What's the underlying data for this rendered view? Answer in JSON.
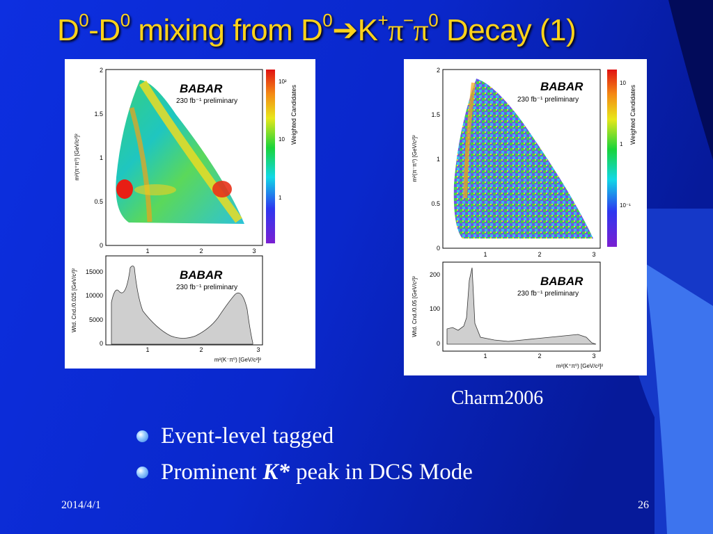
{
  "slide": {
    "title": {
      "p1": "D",
      "s1": "0",
      "p2": "-D",
      "s2": "0",
      "p3": " mixing from D",
      "s3": "0",
      "arrow": "➔",
      "p4": "K",
      "s4": "+",
      "p5": "π",
      "s5": "−",
      "p6": "π",
      "s6": "0",
      "p7": " Decay (1)"
    },
    "caption": "Charm2006",
    "bullets": [
      {
        "text": "Event-level tagged"
      },
      {
        "before": "Prominent",
        "emph": "K*",
        "after": "peak in DCS Mode"
      }
    ],
    "footer": {
      "date": "2014/4/1",
      "page": "26"
    },
    "colors": {
      "background": "#0a2ad0",
      "title": "#ffd21a",
      "decoration": "#3d74ee"
    }
  },
  "plots": {
    "babar": "BABAR",
    "lumi": "230 fb⁻¹ preliminary",
    "left_dalitz": {
      "ylabel": "m²(π⁺π⁰) [GeV/c²]²",
      "colorbar_label": "Weighted Candidates",
      "xticks": [
        "1",
        "2",
        "3"
      ],
      "yticks": [
        "0",
        "0.5",
        "1",
        "1.5",
        "2"
      ],
      "cticks": [
        "10²",
        "10",
        "1"
      ]
    },
    "left_proj": {
      "ylabel": "Wtd. Cnd./0.025 [GeV/c²]²",
      "xlabel": "m²(K⁻π⁰) [GeV/c²]²",
      "xticks": [
        "1",
        "2",
        "3"
      ],
      "yticks": [
        "0",
        "5000",
        "10000",
        "15000"
      ]
    },
    "right_dalitz": {
      "ylabel": "m²(π⁻π⁰) [GeV/c²]²",
      "colorbar_label": "Weighted Candidates",
      "xticks": [
        "1",
        "2",
        "3"
      ],
      "yticks": [
        "0",
        "0.5",
        "1",
        "1.5",
        "2"
      ],
      "cticks": [
        "10",
        "1",
        "10⁻¹"
      ]
    },
    "right_proj": {
      "ylabel": "Wtd. Cnd./0.05 [GeV/c²]²",
      "xlabel": "m²(K⁺π⁰) [GeV/c²]²",
      "xticks": [
        "1",
        "2",
        "3"
      ],
      "yticks": [
        "0",
        "100",
        "200"
      ]
    }
  }
}
